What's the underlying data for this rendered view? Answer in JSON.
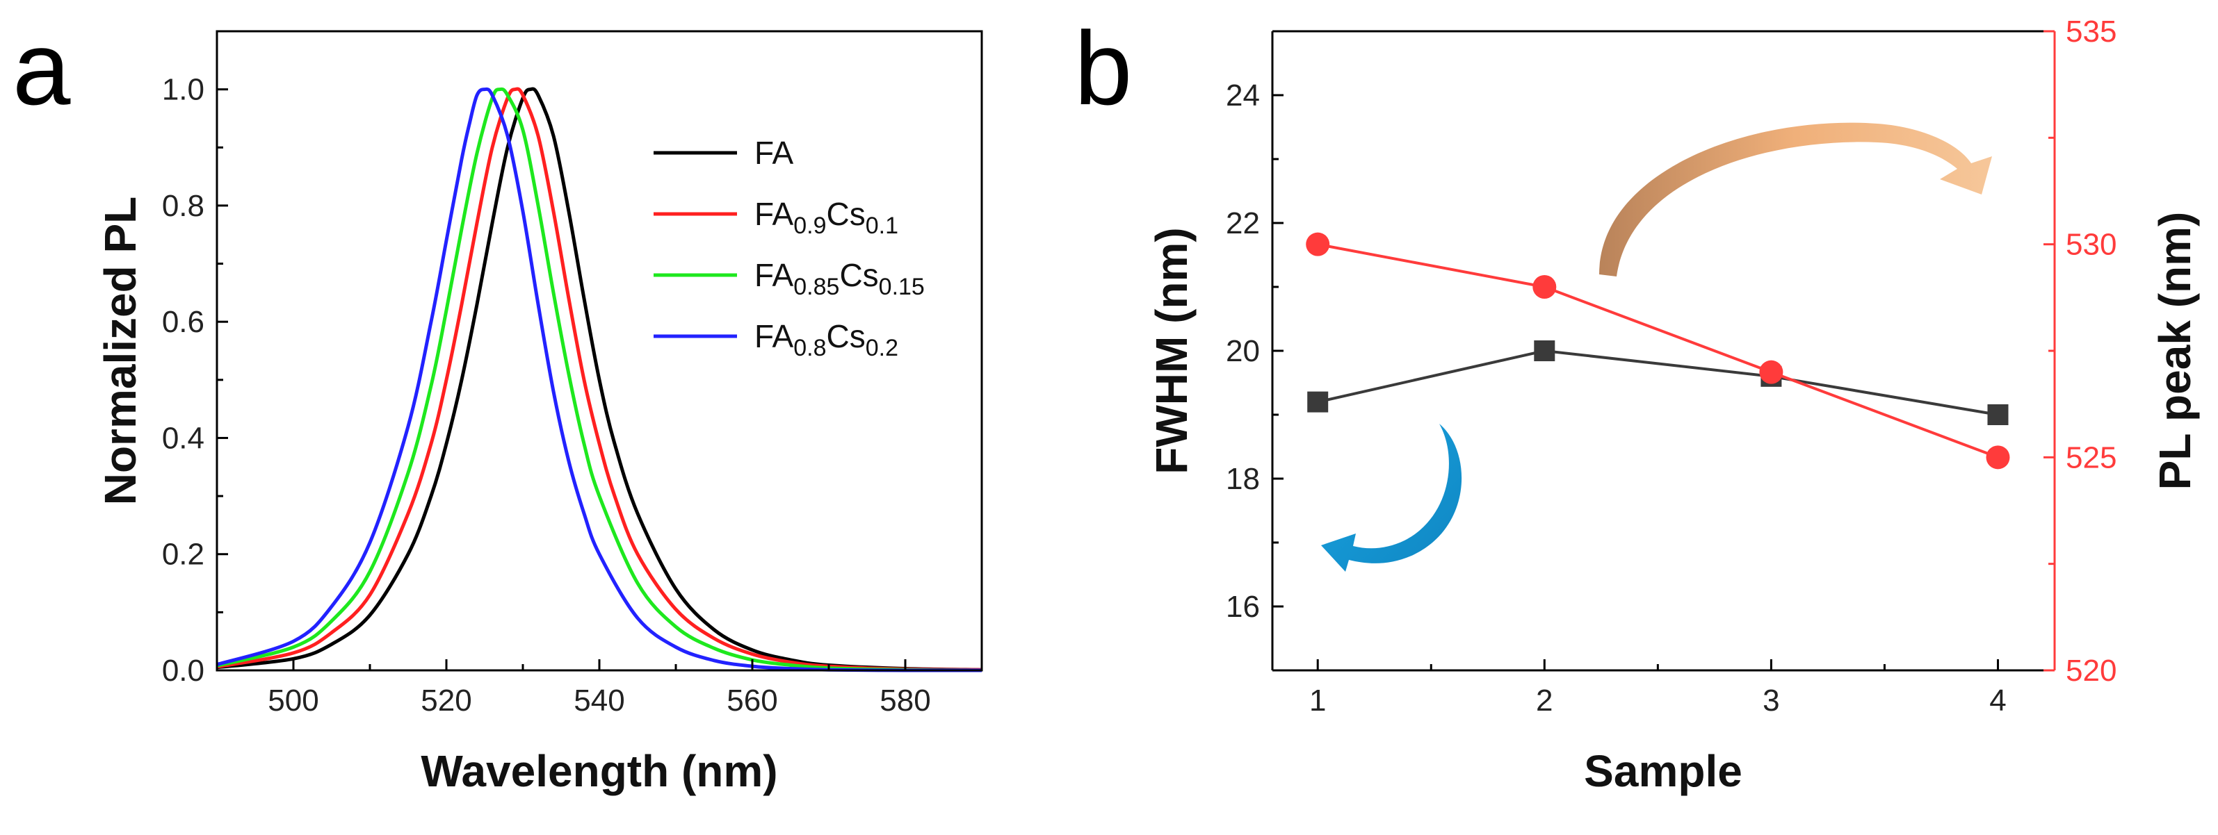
{
  "panels": {
    "a": {
      "letter": "a"
    },
    "b": {
      "letter": "b"
    }
  },
  "chart_data": [
    {
      "type": "line",
      "panel": "a",
      "title": "",
      "xlabel": "Wavelength (nm)",
      "ylabel": "Normalized PL",
      "xlim": [
        490,
        590
      ],
      "ylim": [
        0,
        1.1
      ],
      "xticks": [
        500,
        520,
        540,
        560,
        580
      ],
      "yticks": [
        0.0,
        0.2,
        0.4,
        0.6,
        0.8,
        1.0
      ],
      "xtick_labels": [
        "500",
        "520",
        "540",
        "560",
        "580"
      ],
      "ytick_labels": [
        "0.0",
        "0.2",
        "0.4",
        "0.6",
        "0.8",
        "1.0"
      ],
      "legend_position": "top-right",
      "series": [
        {
          "name": "FA",
          "legend": {
            "base": "FA",
            "parts": []
          },
          "color": "#000000",
          "x": [
            490,
            500,
            505,
            510,
            515,
            518,
            520,
            522,
            524,
            526,
            528,
            530,
            531,
            532,
            534,
            536,
            538,
            540,
            542,
            545,
            550,
            555,
            560,
            565,
            570,
            580,
            590
          ],
          "y": [
            0.005,
            0.02,
            0.045,
            0.095,
            0.2,
            0.3,
            0.39,
            0.5,
            0.63,
            0.77,
            0.9,
            0.985,
            1.0,
            0.99,
            0.92,
            0.79,
            0.64,
            0.5,
            0.39,
            0.27,
            0.14,
            0.07,
            0.035,
            0.018,
            0.009,
            0.003,
            0.001
          ]
        },
        {
          "name": "FA0.9Cs0.1",
          "legend": {
            "base": "FA",
            "parts": [
              [
                "0.9",
                "Cs"
              ],
              [
                "0.1",
                ""
              ]
            ]
          },
          "color": "#ff2020",
          "x": [
            490,
            500,
            505,
            510,
            515,
            518,
            520,
            522,
            524,
            526,
            528,
            529,
            530,
            532,
            534,
            536,
            538,
            540,
            542,
            545,
            550,
            555,
            560,
            565,
            570,
            580,
            590
          ],
          "y": [
            0.006,
            0.03,
            0.065,
            0.13,
            0.27,
            0.39,
            0.5,
            0.63,
            0.77,
            0.9,
            0.985,
            1.0,
            0.99,
            0.92,
            0.79,
            0.64,
            0.5,
            0.39,
            0.3,
            0.2,
            0.105,
            0.055,
            0.028,
            0.014,
            0.007,
            0.002,
            0.001
          ]
        },
        {
          "name": "FA0.85Cs0.15",
          "legend": {
            "base": "FA",
            "parts": [
              [
                "0.85",
                "Cs"
              ],
              [
                "0.15",
                ""
              ]
            ]
          },
          "color": "#1ee81e",
          "x": [
            490,
            500,
            505,
            510,
            515,
            518,
            520,
            522,
            524,
            526,
            527,
            528,
            530,
            532,
            534,
            536,
            538,
            540,
            545,
            550,
            555,
            560,
            565,
            570,
            580,
            590
          ],
          "y": [
            0.008,
            0.04,
            0.085,
            0.17,
            0.34,
            0.49,
            0.62,
            0.76,
            0.89,
            0.985,
            1.0,
            0.99,
            0.93,
            0.8,
            0.65,
            0.51,
            0.39,
            0.3,
            0.15,
            0.075,
            0.038,
            0.018,
            0.009,
            0.004,
            0.001,
            0.0
          ]
        },
        {
          "name": "FA0.8Cs0.2",
          "legend": {
            "base": "FA",
            "parts": [
              [
                "0.8",
                "Cs"
              ],
              [
                "0.2",
                ""
              ]
            ]
          },
          "color": "#2222ff",
          "x": [
            490,
            500,
            505,
            510,
            515,
            518,
            520,
            522,
            523,
            524,
            525,
            526,
            528,
            530,
            532,
            534,
            536,
            538,
            540,
            545,
            550,
            555,
            560,
            565,
            570,
            580,
            590
          ],
          "y": [
            0.01,
            0.05,
            0.11,
            0.22,
            0.42,
            0.6,
            0.74,
            0.88,
            0.94,
            0.99,
            1.0,
            0.99,
            0.92,
            0.79,
            0.63,
            0.48,
            0.36,
            0.27,
            0.2,
            0.09,
            0.04,
            0.017,
            0.007,
            0.003,
            0.001,
            0.0,
            0.0
          ]
        }
      ]
    },
    {
      "type": "line",
      "panel": "b",
      "title": "",
      "xlabel": "Sample",
      "ylabel": "FWHM (nm)",
      "ylabel_right": "PL peak (nm)",
      "xlim": [
        0.8,
        4.25
      ],
      "ylim": [
        15,
        25
      ],
      "ylim_right": [
        520,
        535
      ],
      "xticks": [
        1,
        2,
        3,
        4
      ],
      "xtick_labels": [
        "1",
        "2",
        "3",
        "4"
      ],
      "yticks": [
        16,
        18,
        20,
        22,
        24
      ],
      "ytick_labels": [
        "16",
        "18",
        "20",
        "22",
        "24"
      ],
      "yticks_right": [
        520,
        525,
        530,
        535
      ],
      "ytick_labels_right": [
        "520",
        "525",
        "530",
        "535"
      ],
      "right_axis_color": "#ff3b3b",
      "series": [
        {
          "name": "FWHM",
          "axis": "left",
          "marker": "square",
          "color": "#3a3a3a",
          "x": [
            1,
            2,
            3,
            4
          ],
          "y": [
            19.2,
            20.0,
            19.6,
            19.0
          ]
        },
        {
          "name": "PL peak",
          "axis": "right",
          "marker": "circle",
          "color": "#ff3b3b",
          "x": [
            1,
            2,
            3,
            4
          ],
          "y": [
            530,
            529,
            527,
            525
          ]
        }
      ],
      "annotations": [
        {
          "kind": "curved-arrow",
          "points_to": "left-axis",
          "color": "#1aa3e0"
        },
        {
          "kind": "curved-arrow",
          "points_to": "right-axis",
          "color": "#e8a266"
        }
      ]
    }
  ]
}
